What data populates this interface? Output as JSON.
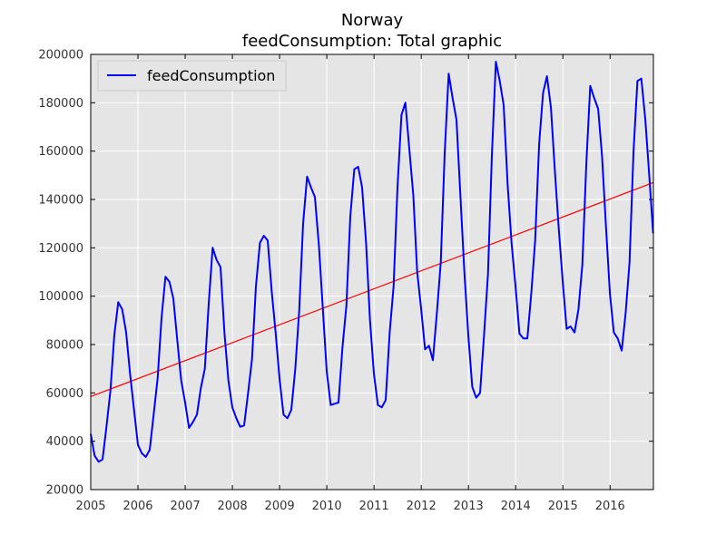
{
  "chart_data": {
    "type": "line",
    "title": "Norway",
    "subtitle": "feedConsumption: Total graphic",
    "xlabel": "",
    "ylabel": "",
    "xlim": [
      2005.0,
      2016.917
    ],
    "ylim": [
      20000,
      200000
    ],
    "x_ticks": [
      "2005",
      "2006",
      "2007",
      "2008",
      "2009",
      "2010",
      "2011",
      "2012",
      "2013",
      "2014",
      "2015",
      "2016"
    ],
    "y_ticks": [
      "20000",
      "40000",
      "60000",
      "80000",
      "100000",
      "120000",
      "140000",
      "160000",
      "180000",
      "200000"
    ],
    "grid": true,
    "legend_position": "top-left",
    "colors": {
      "series": "#0000ff",
      "trend": "#ff0000",
      "plot_bg": "#e5e5e5",
      "grid": "#ffffff"
    },
    "series": [
      {
        "name": "feedConsumption",
        "x_start": 2005.0,
        "x_step": 0.0833,
        "values": [
          43000,
          34000,
          31500,
          32500,
          46000,
          61000,
          84000,
          97500,
          94500,
          85000,
          68000,
          53000,
          38500,
          35000,
          33500,
          36500,
          51000,
          66000,
          91000,
          108000,
          106000,
          99000,
          82000,
          65000,
          56000,
          45500,
          48000,
          51000,
          62000,
          70000,
          97000,
          120000,
          115000,
          112000,
          85000,
          65000,
          54000,
          49500,
          46000,
          46500,
          60000,
          74000,
          104000,
          122000,
          125000,
          123000,
          102000,
          85000,
          66000,
          51000,
          49500,
          53000,
          70000,
          94000,
          130000,
          149500,
          145000,
          141000,
          121000,
          95000,
          69000,
          55000,
          55500,
          56000,
          79000,
          96000,
          133000,
          152500,
          153500,
          145000,
          122000,
          90000,
          68000,
          55000,
          54000,
          57000,
          85000,
          104000,
          145000,
          175000,
          180000,
          161000,
          142000,
          110000,
          95000,
          78000,
          79500,
          73500,
          93000,
          114000,
          159000,
          192000,
          182000,
          173000,
          141000,
          110000,
          84000,
          62500,
          58000,
          60000,
          84000,
          109000,
          158000,
          197000,
          189000,
          179000,
          146000,
          122000,
          104000,
          84500,
          82500,
          82500,
          101000,
          123000,
          163000,
          184000,
          191000,
          178000,
          152000,
          128000,
          106000,
          86500,
          87500,
          85000,
          94500,
          113000,
          155000,
          187000,
          182000,
          177500,
          158000,
          129000,
          101000,
          85000,
          82500,
          77500,
          93000,
          114000,
          160000,
          189000,
          190000,
          173000,
          150000,
          126000
        ]
      }
    ],
    "trend": {
      "x": [
        2005.0,
        2016.917
      ],
      "values": [
        58500,
        147000
      ]
    }
  }
}
